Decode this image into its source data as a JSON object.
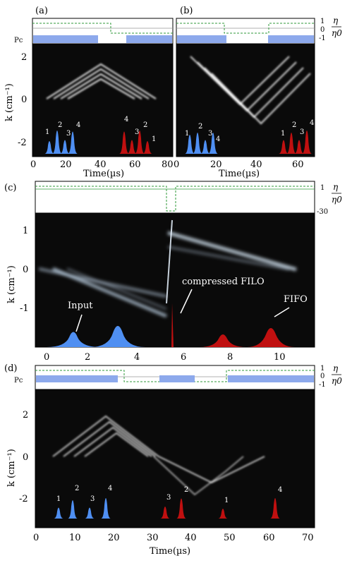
{
  "panels": [
    {
      "id": "a",
      "label": "(a)",
      "control_labels": {
        "pc": "Pc",
        "eta_num": "η",
        "eta_den": "η0",
        "tick_top": "1",
        "tick_mid": "0",
        "tick_bot": "-1"
      },
      "x_ticks": [
        0,
        20,
        40,
        60,
        80
      ],
      "x_label": "Time(µs)",
      "y_ticks": [
        2,
        0,
        -2
      ],
      "y_label": "k (cm⁻¹)",
      "input_pulse_labels": [
        "1",
        "2",
        "3",
        "4"
      ],
      "output_pulse_labels": [
        "4",
        "3",
        "2",
        "1"
      ]
    },
    {
      "id": "b",
      "label": "(b)",
      "control_labels": {
        "eta_num": "η",
        "eta_den": "η0",
        "tick_top": "1",
        "tick_mid": "0",
        "tick_bot": "-1"
      },
      "x_ticks": [
        0,
        20,
        40,
        60
      ],
      "x_label": "Time(µs)",
      "input_pulse_labels": [
        "1",
        "2",
        "3",
        "4"
      ],
      "output_pulse_labels": [
        "1",
        "2",
        "3",
        "4"
      ]
    },
    {
      "id": "c",
      "label": "(c)",
      "control_labels": {
        "eta_num": "η",
        "eta_den": "η0",
        "tick_top": "1",
        "tick_bot": "-30"
      },
      "x_ticks": [
        0,
        2,
        4,
        6,
        8,
        10
      ],
      "y_ticks": [
        1,
        0,
        -1
      ],
      "y_label": "k (cm⁻¹)",
      "annotations": {
        "input": "Input",
        "filo": "compressed FILO",
        "fifo": "FIFO"
      }
    },
    {
      "id": "d",
      "label": "(d)",
      "control_labels": {
        "pc": "Pc",
        "eta_num": "η",
        "eta_den": "η0",
        "tick_top": "1",
        "tick_mid": "0",
        "tick_bot": "-1"
      },
      "x_ticks": [
        0,
        10,
        20,
        30,
        40,
        50,
        60,
        70
      ],
      "x_label": "Time(µs)",
      "y_ticks": [
        2,
        0,
        -2
      ],
      "y_label": "k (cm⁻¹)",
      "input_pulse_labels": [
        "1",
        "2",
        "3",
        "4"
      ],
      "output_pulse_labels": [
        "3",
        "2",
        "1",
        "4"
      ]
    }
  ],
  "colors": {
    "input_pulse": "#4f8ff2",
    "output_pulse": "#c01010",
    "control_bar": "#8da9ec",
    "eta_line": "#2f9a3a",
    "plot_bg": "#0a0a0a"
  }
}
